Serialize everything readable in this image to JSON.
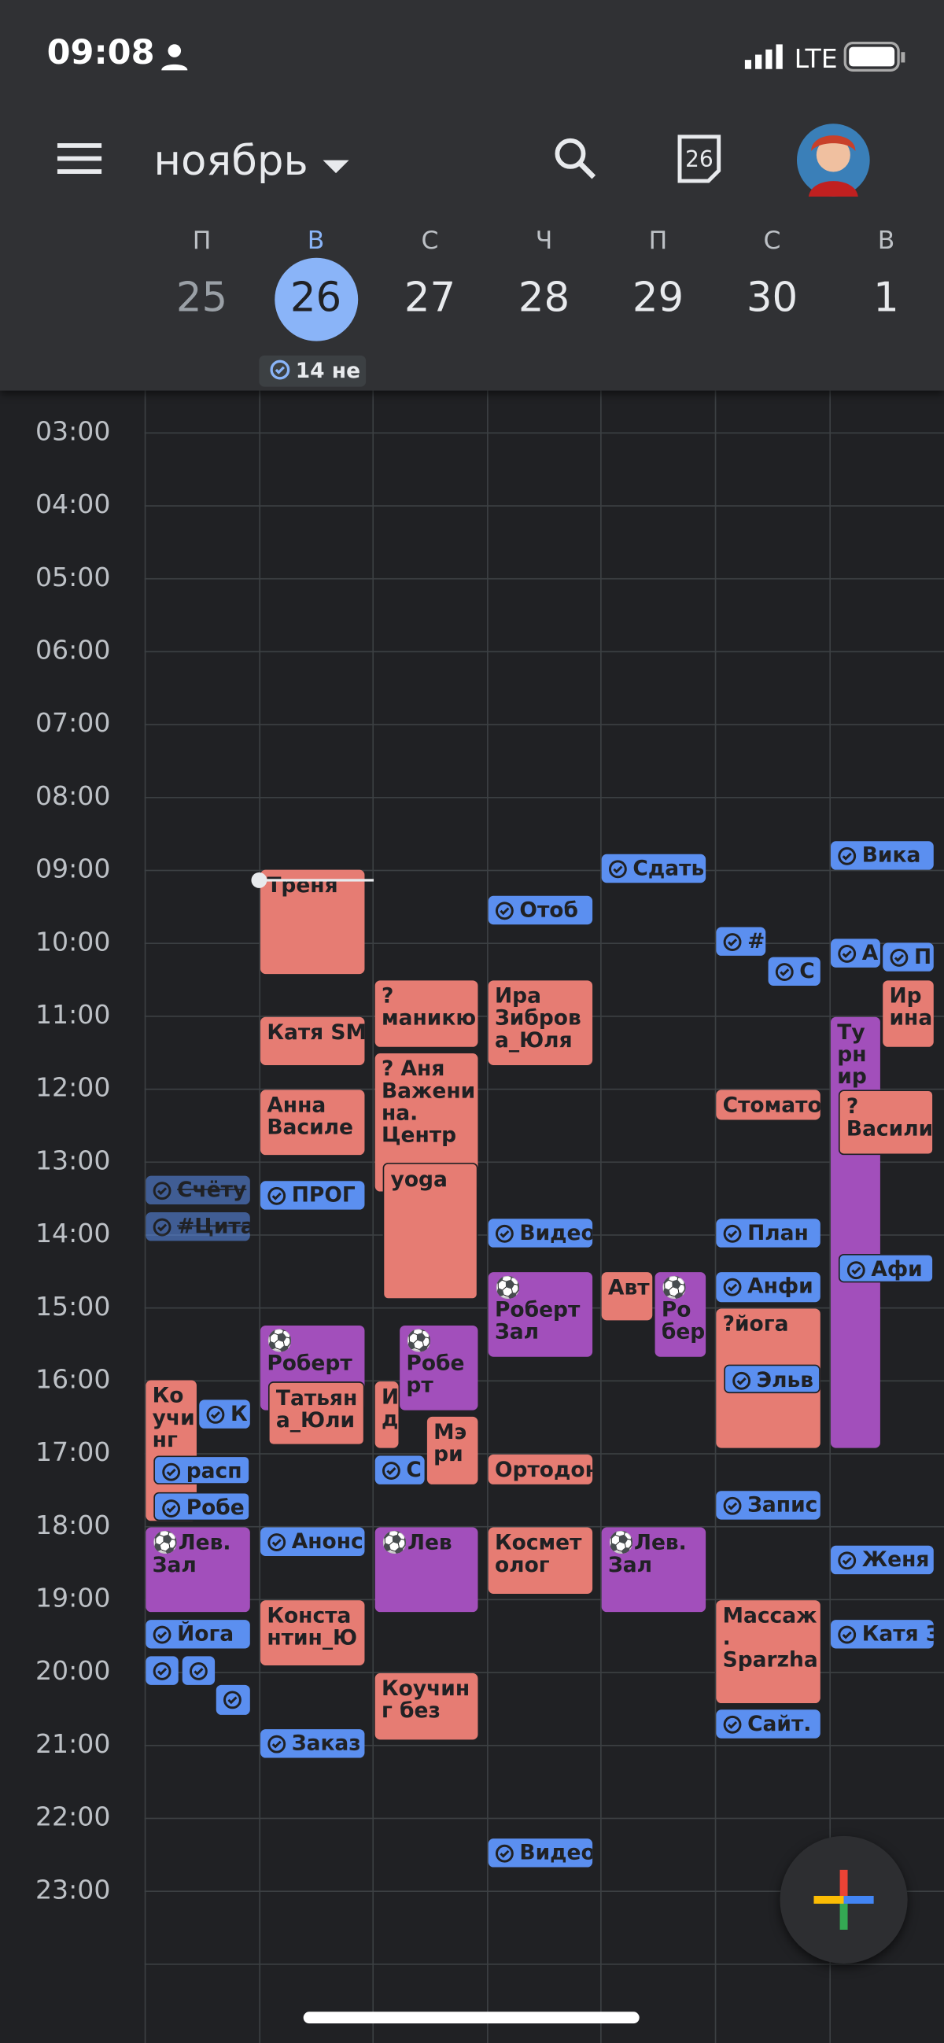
{
  "status": {
    "time": "09:08",
    "network": "LTE"
  },
  "header": {
    "month": "ноябрь",
    "chip": "14 не",
    "days": [
      {
        "letter": "П",
        "num": "25"
      },
      {
        "letter": "В",
        "num": "26"
      },
      {
        "letter": "С",
        "num": "27"
      },
      {
        "letter": "Ч",
        "num": "28"
      },
      {
        "letter": "П",
        "num": "29"
      },
      {
        "letter": "С",
        "num": "30"
      },
      {
        "letter": "В",
        "num": "1"
      }
    ]
  },
  "hours": [
    "03:00",
    "04:00",
    "05:00",
    "06:00",
    "07:00",
    "08:00",
    "09:00",
    "10:00",
    "11:00",
    "12:00",
    "13:00",
    "14:00",
    "15:00",
    "16:00",
    "17:00",
    "18:00",
    "19:00",
    "20:00",
    "21:00",
    "22:00",
    "23:00"
  ],
  "events": [
    {
      "lines": [
        "Счёту"
      ],
      "color": "#5b8ff0",
      "task": true,
      "done": true
    },
    {
      "lines": [
        "#Цита"
      ],
      "color": "#5b8ff0",
      "task": true,
      "done": true
    },
    {
      "lines": [
        "Ко",
        "учи",
        "нг"
      ],
      "color": "#e67c73",
      "task": false,
      "done": false
    },
    {
      "lines": [
        "К"
      ],
      "color": "#5b8ff0",
      "task": true,
      "done": false
    },
    {
      "lines": [
        "расп"
      ],
      "color": "#5b8ff0",
      "task": true,
      "done": false
    },
    {
      "lines": [
        "Робе"
      ],
      "color": "#5b8ff0",
      "task": true,
      "done": false
    },
    {
      "lines": [
        "⚽Лев.",
        "Зал"
      ],
      "color": "#a24fbb",
      "task": false,
      "done": false
    },
    {
      "lines": [
        "Йога"
      ],
      "color": "#5b8ff0",
      "task": true,
      "done": false
    },
    {
      "lines": [],
      "color": "#5b8ff0",
      "task": true,
      "done": false
    },
    {
      "lines": [],
      "color": "#5b8ff0",
      "task": true,
      "done": false
    },
    {
      "lines": [],
      "color": "#5b8ff0",
      "task": true,
      "done": false
    },
    {
      "lines": [
        "Треня"
      ],
      "color": "#e67c73",
      "task": false,
      "done": false
    },
    {
      "lines": [
        "Катя SM"
      ],
      "color": "#e67c73",
      "task": false,
      "done": false
    },
    {
      "lines": [
        "Анна",
        "Василе"
      ],
      "color": "#e67c73",
      "task": false,
      "done": false
    },
    {
      "lines": [
        "ПРОГ"
      ],
      "color": "#5b8ff0",
      "task": true,
      "done": false
    },
    {
      "lines": [
        "⚽",
        "Роберт"
      ],
      "color": "#a24fbb",
      "task": false,
      "done": false
    },
    {
      "lines": [
        "Татьян",
        "а_Юли"
      ],
      "color": "#e67c73",
      "task": false,
      "done": false
    },
    {
      "lines": [
        "Анонс"
      ],
      "color": "#5b8ff0",
      "task": true,
      "done": false
    },
    {
      "lines": [
        "Конста",
        "нтин_Ю"
      ],
      "color": "#e67c73",
      "task": false,
      "done": false
    },
    {
      "lines": [
        "Заказ"
      ],
      "color": "#5b8ff0",
      "task": true,
      "done": false
    },
    {
      "lines": [
        "?",
        "маникю"
      ],
      "color": "#e67c73",
      "task": false,
      "done": false
    },
    {
      "lines": [
        "? Аня",
        "Важени",
        "на.",
        "Центр"
      ],
      "color": "#e67c73",
      "task": false,
      "done": false
    },
    {
      "lines": [
        "yoga"
      ],
      "color": "#e67c73",
      "task": false,
      "done": false
    },
    {
      "lines": [
        "⚽",
        "Робе",
        "рт"
      ],
      "color": "#a24fbb",
      "task": false,
      "done": false
    },
    {
      "lines": [
        "И",
        "д"
      ],
      "color": "#e67c73",
      "task": false,
      "done": false
    },
    {
      "lines": [
        "Мэ",
        "ри"
      ],
      "color": "#e67c73",
      "task": false,
      "done": false
    },
    {
      "lines": [
        "С"
      ],
      "color": "#5b8ff0",
      "task": true,
      "done": false
    },
    {
      "lines": [
        "⚽Лев"
      ],
      "color": "#a24fbb",
      "task": false,
      "done": false
    },
    {
      "lines": [
        "Коучин",
        "г без"
      ],
      "color": "#e67c73",
      "task": false,
      "done": false
    },
    {
      "lines": [
        "Отоб"
      ],
      "color": "#5b8ff0",
      "task": true,
      "done": false
    },
    {
      "lines": [
        "Ира",
        "Зибров",
        "а_Юля"
      ],
      "color": "#e67c73",
      "task": false,
      "done": false
    },
    {
      "lines": [
        "Видео"
      ],
      "color": "#5b8ff0",
      "task": true,
      "done": false
    },
    {
      "lines": [
        "⚽",
        "Роберт",
        "Зал"
      ],
      "color": "#a24fbb",
      "task": false,
      "done": false
    },
    {
      "lines": [
        "Ортодон"
      ],
      "color": "#e67c73",
      "task": false,
      "done": false
    },
    {
      "lines": [
        "Космет",
        "олог"
      ],
      "color": "#e67c73",
      "task": false,
      "done": false
    },
    {
      "lines": [
        "Видео"
      ],
      "color": "#5b8ff0",
      "task": true,
      "done": false
    },
    {
      "lines": [
        "Сдать"
      ],
      "color": "#5b8ff0",
      "task": true,
      "done": false
    },
    {
      "lines": [
        "Авт"
      ],
      "color": "#e67c73",
      "task": false,
      "done": false
    },
    {
      "lines": [
        "⚽",
        "Ро",
        "бер"
      ],
      "color": "#a24fbb",
      "task": false,
      "done": false
    },
    {
      "lines": [
        "⚽Лев.",
        "Зал"
      ],
      "color": "#a24fbb",
      "task": false,
      "done": false
    },
    {
      "lines": [
        "#"
      ],
      "color": "#5b8ff0",
      "task": true,
      "done": false
    },
    {
      "lines": [
        "С"
      ],
      "color": "#5b8ff0",
      "task": true,
      "done": false
    },
    {
      "lines": [
        "Стомато"
      ],
      "color": "#e67c73",
      "task": false,
      "done": false
    },
    {
      "lines": [
        "План"
      ],
      "color": "#5b8ff0",
      "task": true,
      "done": false
    },
    {
      "lines": [
        "Анфи"
      ],
      "color": "#5b8ff0",
      "task": true,
      "done": false
    },
    {
      "lines": [
        "?йога"
      ],
      "color": "#e67c73",
      "task": false,
      "done": false
    },
    {
      "lines": [
        "Эльв"
      ],
      "color": "#5b8ff0",
      "task": true,
      "done": false
    },
    {
      "lines": [
        "Запис"
      ],
      "color": "#5b8ff0",
      "task": true,
      "done": false
    },
    {
      "lines": [
        "Массаж",
        ".",
        "Sparzha"
      ],
      "color": "#e67c73",
      "task": false,
      "done": false
    },
    {
      "lines": [
        "Сайт."
      ],
      "color": "#5b8ff0",
      "task": true,
      "done": false
    },
    {
      "lines": [
        "Вика"
      ],
      "color": "#5b8ff0",
      "task": true,
      "done": false
    },
    {
      "lines": [
        "А"
      ],
      "color": "#5b8ff0",
      "task": true,
      "done": false
    },
    {
      "lines": [
        "П"
      ],
      "color": "#5b8ff0",
      "task": true,
      "done": false
    },
    {
      "lines": [
        "Ир",
        "ина"
      ],
      "color": "#e67c73",
      "task": false,
      "done": false
    },
    {
      "lines": [
        "Ту",
        "рн",
        "ир"
      ],
      "color": "#a24fbb",
      "task": false,
      "done": false
    },
    {
      "lines": [
        "?",
        "Васили"
      ],
      "color": "#e67c73",
      "task": false,
      "done": false
    },
    {
      "lines": [
        "Афи"
      ],
      "color": "#5b8ff0",
      "task": true,
      "done": false
    },
    {
      "lines": [
        "Женя"
      ],
      "color": "#5b8ff0",
      "task": true,
      "done": false
    },
    {
      "lines": [
        "Катя З"
      ],
      "color": "#5b8ff0",
      "task": true,
      "done": false
    }
  ]
}
